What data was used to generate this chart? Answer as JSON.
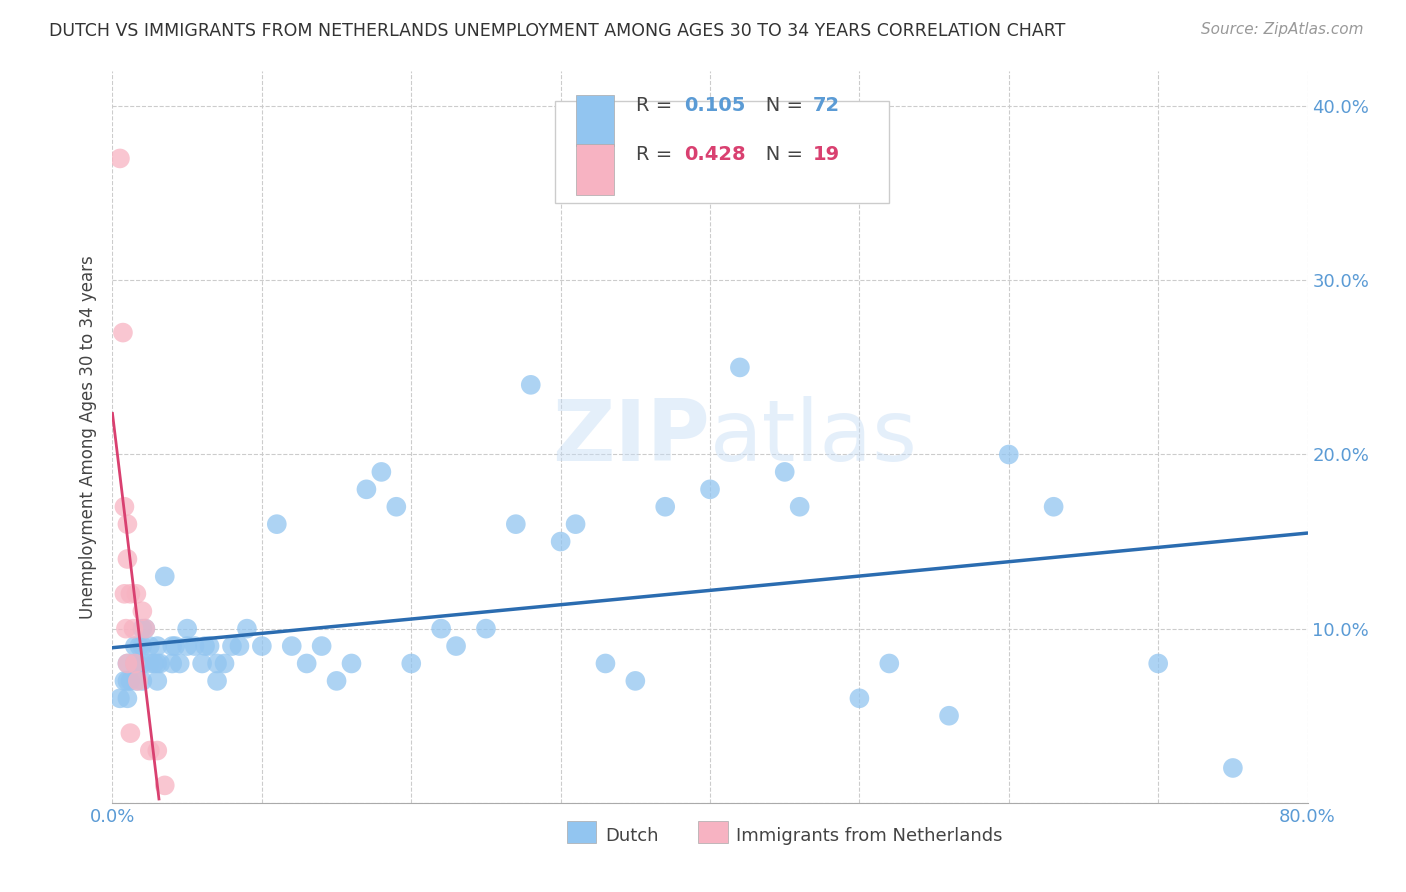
{
  "title": "DUTCH VS IMMIGRANTS FROM NETHERLANDS UNEMPLOYMENT AMONG AGES 30 TO 34 YEARS CORRELATION CHART",
  "source": "Source: ZipAtlas.com",
  "ylabel": "Unemployment Among Ages 30 to 34 years",
  "xlim": [
    0.0,
    0.8
  ],
  "ylim": [
    0.0,
    0.42
  ],
  "x_ticks": [
    0.0,
    0.1,
    0.2,
    0.3,
    0.4,
    0.5,
    0.6,
    0.7,
    0.8
  ],
  "y_ticks": [
    0.0,
    0.1,
    0.2,
    0.3,
    0.4
  ],
  "dutch_R": 0.105,
  "dutch_N": 72,
  "immigrants_R": 0.428,
  "immigrants_N": 19,
  "dutch_color": "#92C5F0",
  "dutch_line_color": "#2B6CB0",
  "immigrants_color": "#F7B3C2",
  "immigrants_line_color": "#D94070",
  "tick_color": "#5B9BD5",
  "watermark": "ZIPatlas",
  "dutch_x": [
    0.005,
    0.008,
    0.01,
    0.01,
    0.01,
    0.012,
    0.015,
    0.015,
    0.016,
    0.017,
    0.018,
    0.02,
    0.02,
    0.02,
    0.02,
    0.022,
    0.025,
    0.025,
    0.028,
    0.03,
    0.03,
    0.03,
    0.032,
    0.035,
    0.04,
    0.04,
    0.042,
    0.045,
    0.05,
    0.05,
    0.055,
    0.06,
    0.062,
    0.065,
    0.07,
    0.07,
    0.075,
    0.08,
    0.085,
    0.09,
    0.1,
    0.11,
    0.12,
    0.13,
    0.14,
    0.15,
    0.16,
    0.17,
    0.18,
    0.19,
    0.2,
    0.22,
    0.23,
    0.25,
    0.27,
    0.28,
    0.3,
    0.31,
    0.33,
    0.35,
    0.37,
    0.4,
    0.42,
    0.45,
    0.46,
    0.5,
    0.52,
    0.56,
    0.6,
    0.63,
    0.7,
    0.75
  ],
  "dutch_y": [
    0.06,
    0.07,
    0.08,
    0.07,
    0.06,
    0.07,
    0.09,
    0.08,
    0.07,
    0.08,
    0.09,
    0.1,
    0.09,
    0.08,
    0.07,
    0.1,
    0.09,
    0.08,
    0.08,
    0.09,
    0.08,
    0.07,
    0.08,
    0.13,
    0.09,
    0.08,
    0.09,
    0.08,
    0.1,
    0.09,
    0.09,
    0.08,
    0.09,
    0.09,
    0.07,
    0.08,
    0.08,
    0.09,
    0.09,
    0.1,
    0.09,
    0.16,
    0.09,
    0.08,
    0.09,
    0.07,
    0.08,
    0.18,
    0.19,
    0.17,
    0.08,
    0.1,
    0.09,
    0.1,
    0.16,
    0.24,
    0.15,
    0.16,
    0.08,
    0.07,
    0.17,
    0.18,
    0.25,
    0.19,
    0.17,
    0.06,
    0.08,
    0.05,
    0.2,
    0.17,
    0.08,
    0.02
  ],
  "immigrants_x": [
    0.005,
    0.007,
    0.008,
    0.008,
    0.009,
    0.01,
    0.01,
    0.01,
    0.012,
    0.012,
    0.014,
    0.015,
    0.016,
    0.017,
    0.02,
    0.022,
    0.025,
    0.03,
    0.035
  ],
  "immigrants_y": [
    0.37,
    0.27,
    0.17,
    0.12,
    0.1,
    0.16,
    0.14,
    0.08,
    0.12,
    0.04,
    0.1,
    0.08,
    0.12,
    0.07,
    0.11,
    0.1,
    0.03,
    0.03,
    0.01
  ]
}
